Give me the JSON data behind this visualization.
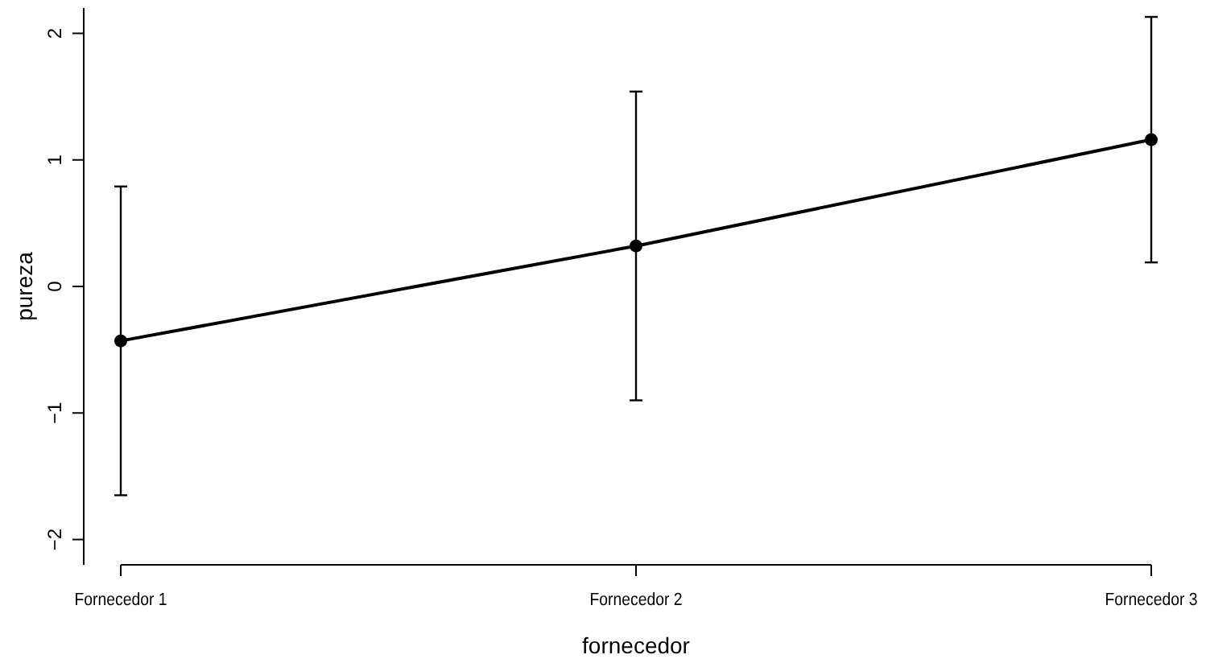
{
  "chart_data": {
    "type": "line",
    "xlabel": "fornecedor",
    "ylabel": "pureza",
    "categories": [
      "Fornecedor 1",
      "Fornecedor 2",
      "Fornecedor 3"
    ],
    "series": [
      {
        "color": "#000000",
        "values": [
          -0.43,
          0.32,
          1.16
        ],
        "errors": [
          1.22,
          1.22,
          0.97
        ]
      }
    ],
    "ylim": [
      -2.2,
      2.2
    ],
    "yticks": [
      -2,
      -1,
      0,
      1,
      2
    ],
    "marker": "circle",
    "line_style": "solid"
  }
}
